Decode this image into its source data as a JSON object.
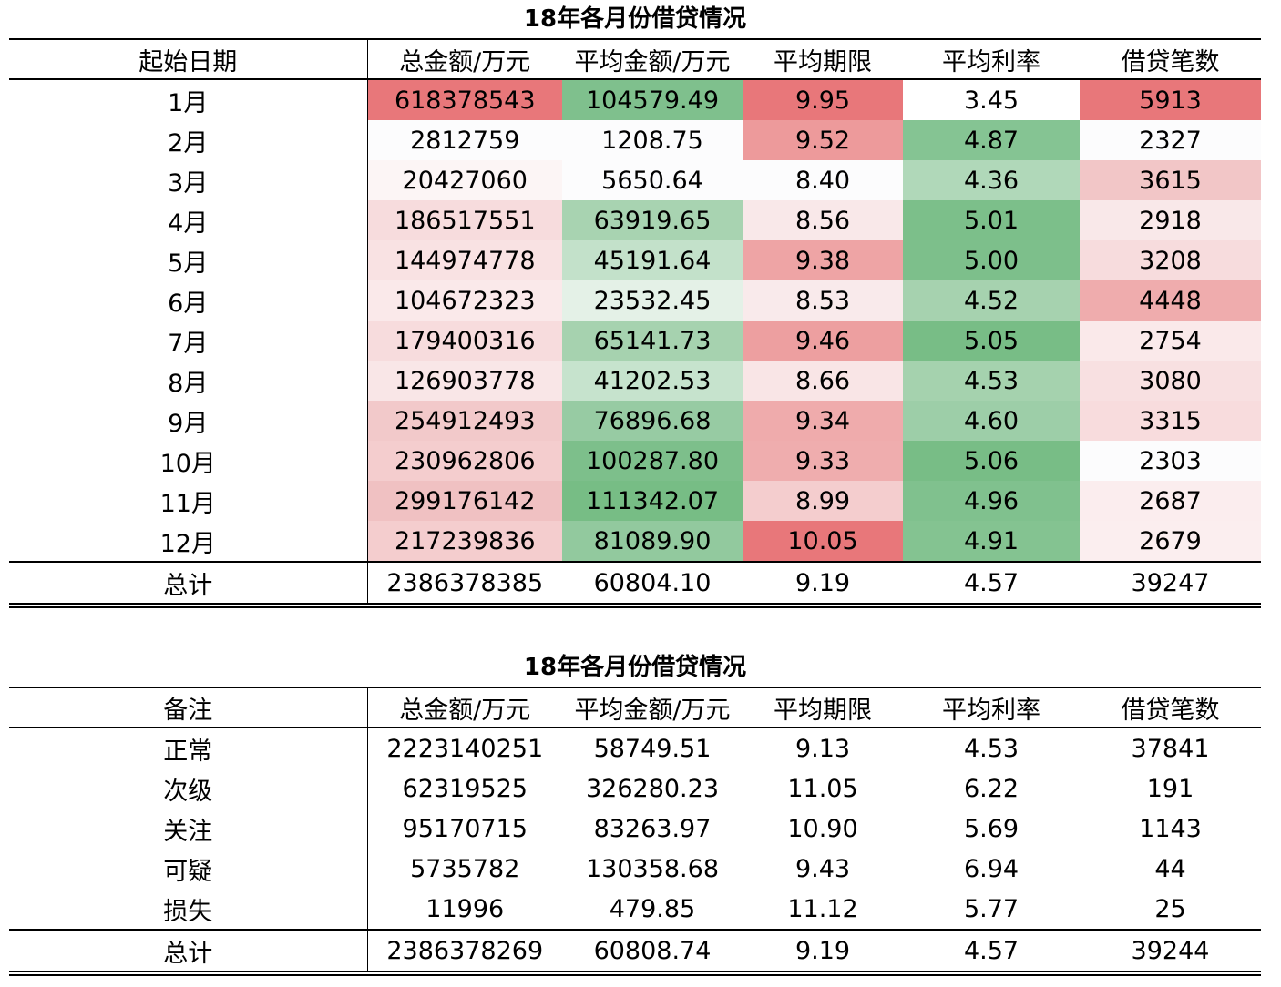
{
  "monthly": {
    "title": "18年各月份借贷情况",
    "headers": [
      "起始日期",
      "总金额/万元",
      "平均金额/万元",
      "平均期限",
      "平均利率",
      "借贷笔数"
    ],
    "rows": [
      [
        "1月",
        "618378543",
        "104579.49",
        "9.95",
        "3.45",
        "5913"
      ],
      [
        "2月",
        "2812759",
        "1208.75",
        "9.52",
        "4.87",
        "2327"
      ],
      [
        "3月",
        "20427060",
        "5650.64",
        "8.40",
        "4.36",
        "3615"
      ],
      [
        "4月",
        "186517551",
        "63919.65",
        "8.56",
        "5.01",
        "2918"
      ],
      [
        "5月",
        "144974778",
        "45191.64",
        "9.38",
        "5.00",
        "3208"
      ],
      [
        "6月",
        "104672323",
        "23532.45",
        "8.53",
        "4.52",
        "4448"
      ],
      [
        "7月",
        "179400316",
        "65141.73",
        "9.46",
        "5.05",
        "2754"
      ],
      [
        "8月",
        "126903778",
        "41202.53",
        "8.66",
        "4.53",
        "3080"
      ],
      [
        "9月",
        "254912493",
        "76896.68",
        "9.34",
        "4.60",
        "3315"
      ],
      [
        "10月",
        "230962806",
        "100287.80",
        "9.33",
        "5.06",
        "2303"
      ],
      [
        "11月",
        "299176142",
        "111342.07",
        "8.99",
        "4.96",
        "2687"
      ],
      [
        "12月",
        "217239836",
        "81089.90",
        "10.05",
        "4.91",
        "2679"
      ]
    ],
    "cell_colors": [
      [
        null,
        "#e8777a",
        "#7fc08d",
        "#e8777a",
        "#ffffff",
        "#e8777a"
      ],
      [
        null,
        "#fcfcfd",
        "#fcfcfd",
        "#ed9a9b",
        "#85c493",
        "#fcfcfd"
      ],
      [
        null,
        "#fcf5f5",
        "#fcfcfd",
        "#fcfcfd",
        "#b0d8b9",
        "#f2c6c7"
      ],
      [
        null,
        "#f7dcdd",
        "#a8d3b1",
        "#f9e8e9",
        "#7cbf8a",
        "#f9e8e9"
      ],
      [
        null,
        "#f9e2e3",
        "#c3e1ca",
        "#eea4a5",
        "#7dbf8b",
        "#f7dcdd"
      ],
      [
        null,
        "#fae9ea",
        "#e4f1e7",
        "#f9eaeb",
        "#a6d2af",
        "#efacad"
      ],
      [
        null,
        "#f7dcdd",
        "#a6d2af",
        "#ed9fa0",
        "#78bd86",
        "#fae9ea"
      ],
      [
        null,
        "#f9e6e7",
        "#c6e3cd",
        "#f9e5e6",
        "#a5d2ae",
        "#f8e0e1"
      ],
      [
        null,
        "#f2c9ca",
        "#97cba3",
        "#efabac",
        "#9dceA8",
        "#f8dcdd"
      ],
      [
        null,
        "#f4cdce",
        "#7dbf8b",
        "#efadae",
        "#78bd86",
        "#fcfcfd"
      ],
      [
        null,
        "#f0c1c2",
        "#77bd85",
        "#f4cdce",
        "#80c18e",
        "#fbedee"
      ],
      [
        null,
        "#f4cdce",
        "#92c99e",
        "#e8777a",
        "#84c391",
        "#fbeeef"
      ]
    ],
    "total": [
      "总计",
      "2386378385",
      "60804.10",
      "9.19",
      "4.57",
      "39247"
    ]
  },
  "grade": {
    "title": "18年各月份借贷情况",
    "headers": [
      "备注",
      "总金额/万元",
      "平均金额/万元",
      "平均期限",
      "平均利率",
      "借贷笔数"
    ],
    "rows": [
      [
        "正常",
        "2223140251",
        "58749.51",
        "9.13",
        "4.53",
        "37841"
      ],
      [
        "次级",
        "62319525",
        "326280.23",
        "11.05",
        "6.22",
        "191"
      ],
      [
        "关注",
        "95170715",
        "83263.97",
        "10.90",
        "5.69",
        "1143"
      ],
      [
        "可疑",
        "5735782",
        "130358.68",
        "9.43",
        "6.94",
        "44"
      ],
      [
        "损失",
        "11996",
        "479.85",
        "11.12",
        "5.77",
        "25"
      ]
    ],
    "total": [
      "总计",
      "2386378269",
      "60808.74",
      "9.19",
      "4.57",
      "39244"
    ]
  }
}
